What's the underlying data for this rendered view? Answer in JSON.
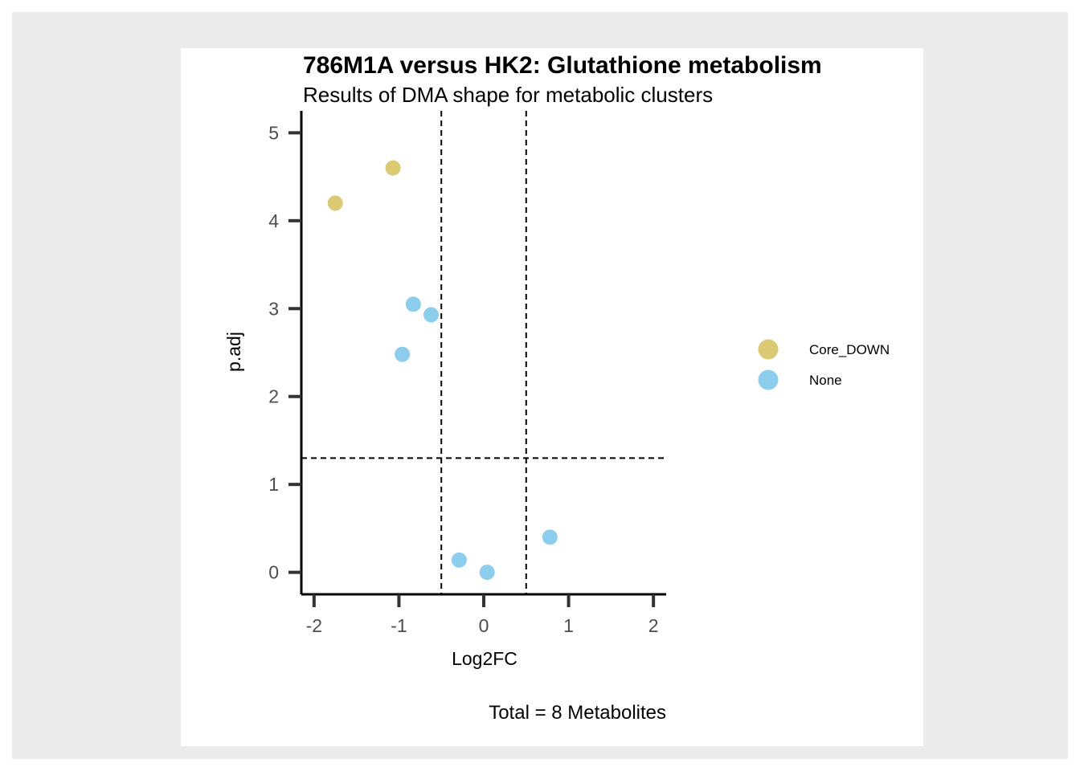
{
  "chart_data": {
    "type": "scatter",
    "title": "786M1A versus HK2: Glutathione metabolism",
    "subtitle": "Results of DMA shape for metabolic clusters",
    "xlabel": "Log2FC",
    "ylabel": "p.adj",
    "caption": "Total = 8 Metabolites",
    "xlim": [
      -2.15,
      2.15
    ],
    "ylim": [
      -0.25,
      5.25
    ],
    "x_ticks": [
      -2,
      -1,
      0,
      1,
      2
    ],
    "y_ticks": [
      0,
      1,
      2,
      3,
      4,
      5
    ],
    "x_tick_labels": [
      "-2",
      "-1",
      "0",
      "1",
      "2"
    ],
    "y_tick_labels": [
      "0",
      "1",
      "2",
      "3",
      "4",
      "5"
    ],
    "vlines": [
      -0.5,
      0.5
    ],
    "hlines": [
      1.3
    ],
    "legend_position": "right",
    "series": [
      {
        "name": "Core_DOWN",
        "color": "#dbc974",
        "points": [
          {
            "x": -1.75,
            "y": 4.2
          },
          {
            "x": -1.07,
            "y": 4.6
          }
        ]
      },
      {
        "name": "None",
        "color": "#8ccdee",
        "points": [
          {
            "x": -0.83,
            "y": 3.05
          },
          {
            "x": -0.62,
            "y": 2.93
          },
          {
            "x": -0.96,
            "y": 2.48
          },
          {
            "x": -0.29,
            "y": 0.14
          },
          {
            "x": 0.04,
            "y": 0.0
          },
          {
            "x": 0.78,
            "y": 0.4
          }
        ]
      }
    ]
  }
}
